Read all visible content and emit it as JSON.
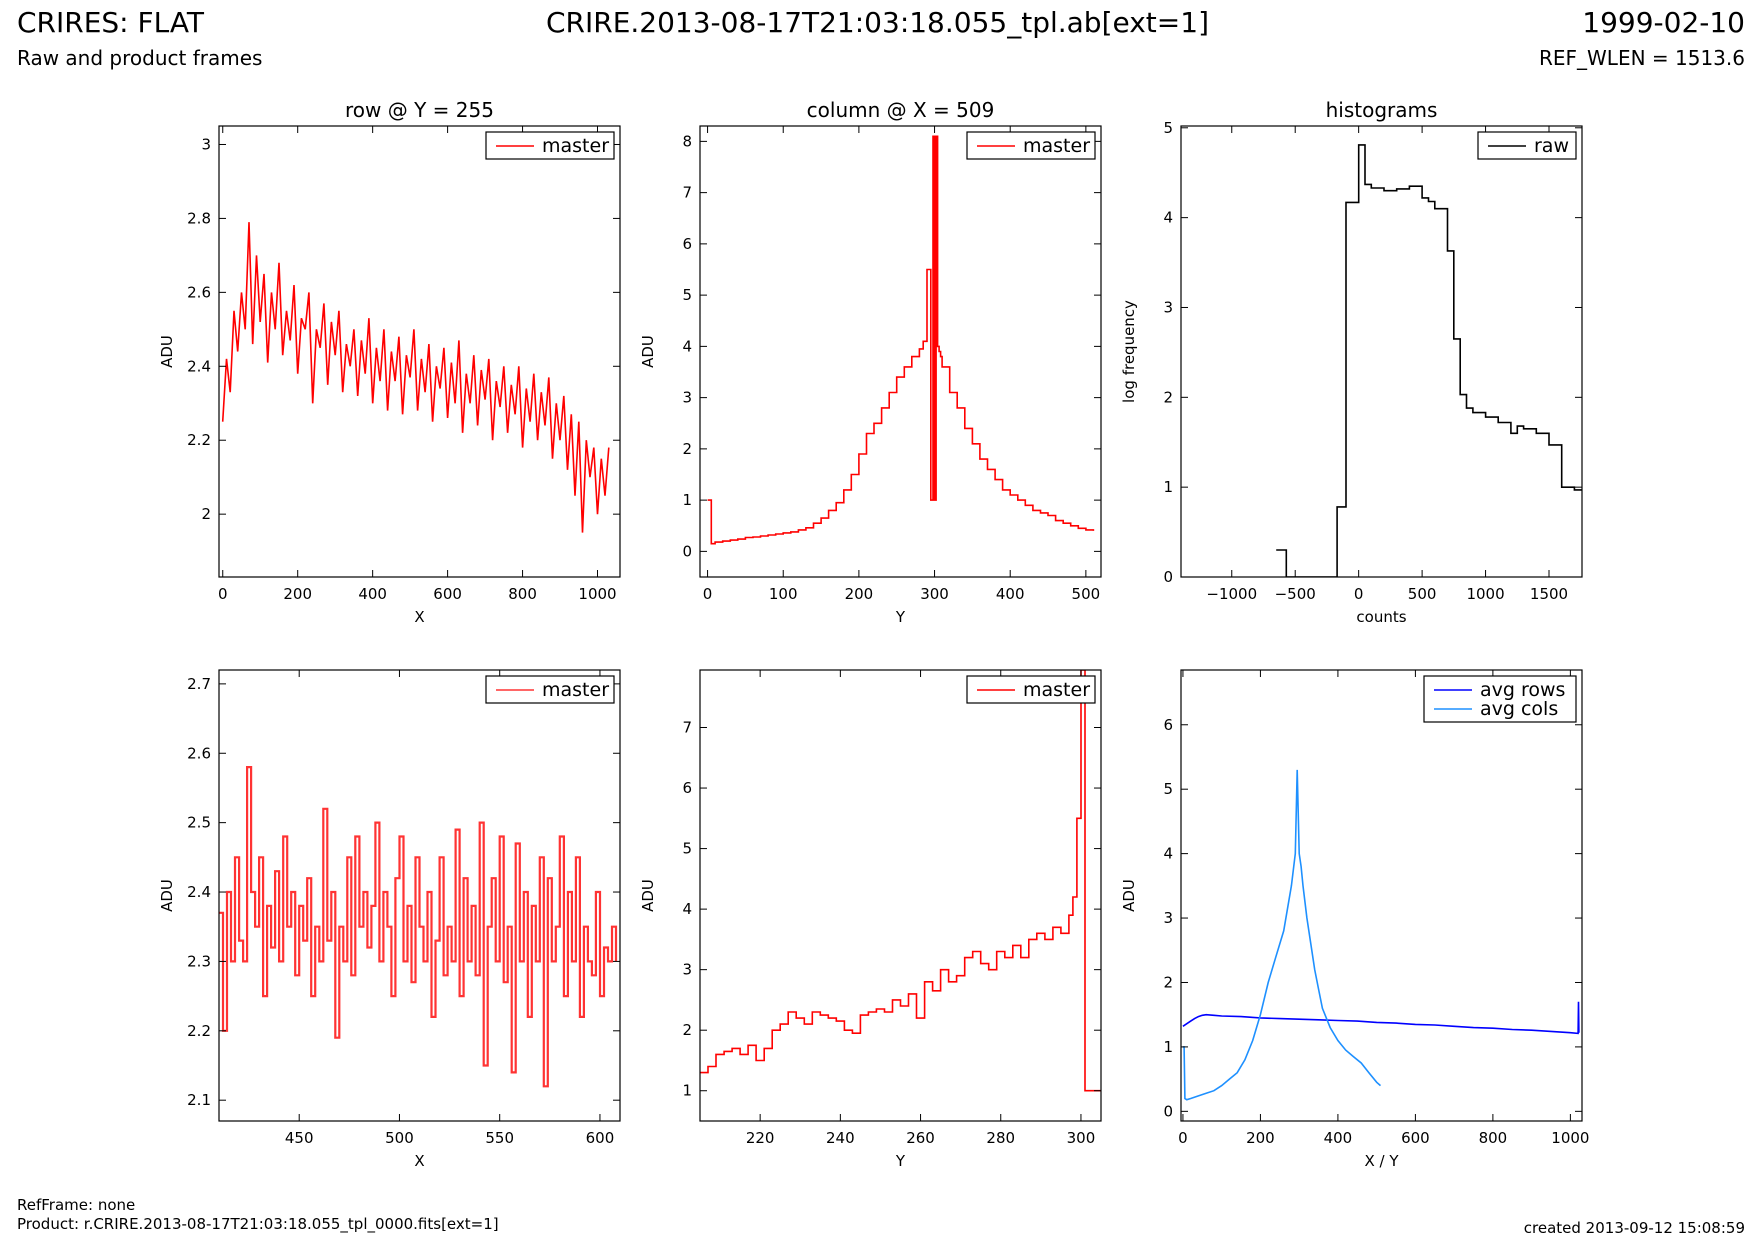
{
  "header": {
    "title": "CRIRES: FLAT",
    "file": "CRIRE.2013-08-17T21:03:18.055_tpl.ab[ext=1]",
    "date": "1999-02-10",
    "subtitle": "Raw and product frames",
    "ref_wlen": "REF_WLEN = 1513.6"
  },
  "footer": {
    "ref_frame": "RefFrame: none",
    "product": "Product: r.CRIRE.2013-08-17T21:03:18.055_tpl_0000.fits[ext=1]",
    "created": "created 2013-09-12 15:08:59"
  },
  "colors": {
    "red": "#ff0000",
    "red_light": "#ff3333",
    "blue": "#0000ff",
    "sky": "#1e90ff",
    "black": "#000000"
  },
  "chart_data": [
    {
      "type": "line",
      "title": "row @ Y = 255",
      "xlabel": "X",
      "ylabel": "ADU",
      "xlim": [
        -10,
        1060
      ],
      "ylim": [
        1.83,
        3.05
      ],
      "xticks": [
        0,
        200,
        400,
        600,
        800,
        1000
      ],
      "yticks": [
        2.0,
        2.2,
        2.4,
        2.6,
        2.8,
        3.0
      ],
      "legend": "top-right",
      "series": [
        {
          "name": "master",
          "color": "#ff0000",
          "step": false,
          "x": [
            0,
            10,
            20,
            30,
            40,
            50,
            60,
            70,
            80,
            90,
            100,
            110,
            120,
            130,
            140,
            150,
            160,
            170,
            180,
            190,
            200,
            210,
            220,
            230,
            240,
            250,
            260,
            270,
            280,
            290,
            300,
            310,
            320,
            330,
            340,
            350,
            360,
            370,
            380,
            390,
            400,
            410,
            420,
            430,
            440,
            450,
            460,
            470,
            480,
            490,
            500,
            510,
            520,
            530,
            540,
            550,
            560,
            570,
            580,
            590,
            600,
            610,
            620,
            630,
            640,
            650,
            660,
            670,
            680,
            690,
            700,
            710,
            720,
            730,
            740,
            750,
            760,
            770,
            780,
            790,
            800,
            810,
            820,
            830,
            840,
            850,
            860,
            870,
            880,
            890,
            900,
            910,
            920,
            930,
            940,
            950,
            960,
            970,
            980,
            990,
            1000,
            1010,
            1020,
            1030
          ],
          "y": [
            2.25,
            2.42,
            2.33,
            2.55,
            2.44,
            2.6,
            2.5,
            2.79,
            2.46,
            2.7,
            2.52,
            2.65,
            2.41,
            2.6,
            2.5,
            2.68,
            2.43,
            2.55,
            2.47,
            2.62,
            2.38,
            2.53,
            2.5,
            2.6,
            2.3,
            2.5,
            2.45,
            2.57,
            2.35,
            2.52,
            2.43,
            2.55,
            2.33,
            2.46,
            2.4,
            2.5,
            2.32,
            2.47,
            2.38,
            2.53,
            2.3,
            2.45,
            2.36,
            2.5,
            2.28,
            2.44,
            2.36,
            2.48,
            2.27,
            2.43,
            2.37,
            2.5,
            2.28,
            2.42,
            2.33,
            2.46,
            2.25,
            2.4,
            2.34,
            2.45,
            2.26,
            2.41,
            2.3,
            2.47,
            2.22,
            2.38,
            2.3,
            2.43,
            2.24,
            2.39,
            2.31,
            2.42,
            2.2,
            2.36,
            2.29,
            2.4,
            2.22,
            2.35,
            2.27,
            2.4,
            2.18,
            2.34,
            2.25,
            2.38,
            2.2,
            2.33,
            2.24,
            2.37,
            2.15,
            2.3,
            2.2,
            2.32,
            2.12,
            2.27,
            2.05,
            2.25,
            1.95,
            2.2,
            2.1,
            2.18,
            2.0,
            2.15,
            2.05,
            2.18
          ]
        }
      ]
    },
    {
      "type": "line",
      "title": "column @ X = 509",
      "xlabel": "Y",
      "ylabel": "ADU",
      "xlim": [
        -10,
        520
      ],
      "ylim": [
        -0.5,
        8.3
      ],
      "xticks": [
        0,
        100,
        200,
        300,
        400,
        500
      ],
      "yticks": [
        0,
        1,
        2,
        3,
        4,
        5,
        6,
        7,
        8
      ],
      "legend": "top-right",
      "series": [
        {
          "name": "master",
          "color": "#ff0000",
          "step": true,
          "x": [
            0,
            3,
            5,
            10,
            20,
            30,
            40,
            50,
            60,
            70,
            80,
            90,
            100,
            110,
            120,
            130,
            140,
            150,
            160,
            170,
            180,
            190,
            200,
            210,
            220,
            230,
            240,
            250,
            260,
            270,
            280,
            285,
            290,
            295,
            298,
            300,
            302,
            304,
            306,
            308,
            310,
            320,
            330,
            340,
            350,
            360,
            370,
            380,
            390,
            400,
            410,
            420,
            430,
            440,
            450,
            460,
            470,
            480,
            490,
            500,
            510
          ],
          "y": [
            1.0,
            1.0,
            0.15,
            0.18,
            0.2,
            0.22,
            0.24,
            0.27,
            0.28,
            0.3,
            0.32,
            0.34,
            0.36,
            0.38,
            0.42,
            0.46,
            0.55,
            0.65,
            0.8,
            0.95,
            1.2,
            1.5,
            1.9,
            2.3,
            2.5,
            2.8,
            3.1,
            3.4,
            3.6,
            3.8,
            3.95,
            4.1,
            5.5,
            1.0,
            8.1,
            1.0,
            8.1,
            4.0,
            3.9,
            3.8,
            3.6,
            3.1,
            2.8,
            2.4,
            2.1,
            1.8,
            1.6,
            1.4,
            1.2,
            1.1,
            1.0,
            0.9,
            0.8,
            0.75,
            0.7,
            0.6,
            0.55,
            0.5,
            0.45,
            0.42,
            0.4
          ]
        }
      ]
    },
    {
      "type": "line",
      "title": "histograms",
      "xlabel": "counts",
      "ylabel": "log frequency",
      "xlim": [
        -1400,
        1760
      ],
      "ylim": [
        0,
        5.02
      ],
      "xticks": [
        -1000,
        -500,
        0,
        500,
        1000,
        1500
      ],
      "yticks": [
        0,
        1,
        2,
        3,
        4,
        5
      ],
      "legend": "top-right",
      "series": [
        {
          "name": "raw",
          "color": "#000000",
          "step": true,
          "x": [
            -650,
            -570,
            -170,
            -100,
            0,
            50,
            100,
            200,
            300,
            400,
            500,
            550,
            600,
            700,
            750,
            800,
            850,
            900,
            1000,
            1100,
            1200,
            1250,
            1300,
            1400,
            1500,
            1550,
            1600,
            1650,
            1700,
            1760
          ],
          "y": [
            0.3,
            0,
            0.78,
            4.17,
            4.81,
            4.37,
            4.33,
            4.3,
            4.32,
            4.35,
            4.22,
            4.18,
            4.1,
            3.63,
            2.65,
            2.03,
            1.88,
            1.83,
            1.78,
            1.72,
            1.6,
            1.68,
            1.65,
            1.6,
            1.47,
            1.47,
            1.0,
            1.0,
            0.97,
            0.97
          ]
        }
      ]
    },
    {
      "type": "line",
      "title": "",
      "xlabel": "X",
      "ylabel": "ADU",
      "xlim": [
        410,
        610
      ],
      "ylim": [
        2.07,
        2.72
      ],
      "xticks": [
        450,
        500,
        550,
        600
      ],
      "yticks": [
        2.1,
        2.2,
        2.3,
        2.4,
        2.5,
        2.6,
        2.7
      ],
      "legend": "top-right",
      "series": [
        {
          "name": "master",
          "color": "#ff3333",
          "step": true,
          "x": [
            410,
            412,
            414,
            416,
            418,
            420,
            422,
            424,
            426,
            428,
            430,
            432,
            434,
            436,
            438,
            440,
            442,
            444,
            446,
            448,
            450,
            452,
            454,
            456,
            458,
            460,
            462,
            464,
            466,
            468,
            470,
            472,
            474,
            476,
            478,
            480,
            482,
            484,
            486,
            488,
            490,
            492,
            494,
            496,
            498,
            500,
            502,
            504,
            506,
            508,
            510,
            512,
            514,
            516,
            518,
            520,
            522,
            524,
            526,
            528,
            530,
            532,
            534,
            536,
            538,
            540,
            542,
            544,
            546,
            548,
            550,
            552,
            554,
            556,
            558,
            560,
            562,
            564,
            566,
            568,
            570,
            572,
            574,
            576,
            578,
            580,
            582,
            584,
            586,
            588,
            590,
            592,
            594,
            596,
            598,
            600,
            602,
            604,
            606,
            608
          ],
          "y": [
            2.37,
            2.2,
            2.4,
            2.3,
            2.45,
            2.33,
            2.3,
            2.58,
            2.4,
            2.35,
            2.45,
            2.25,
            2.38,
            2.32,
            2.43,
            2.3,
            2.48,
            2.35,
            2.4,
            2.28,
            2.38,
            2.33,
            2.42,
            2.25,
            2.35,
            2.3,
            2.52,
            2.33,
            2.4,
            2.19,
            2.35,
            2.3,
            2.45,
            2.28,
            2.48,
            2.35,
            2.4,
            2.32,
            2.38,
            2.5,
            2.3,
            2.4,
            2.35,
            2.25,
            2.42,
            2.48,
            2.3,
            2.38,
            2.27,
            2.45,
            2.35,
            2.3,
            2.4,
            2.22,
            2.33,
            2.45,
            2.28,
            2.35,
            2.3,
            2.49,
            2.25,
            2.42,
            2.3,
            2.38,
            2.28,
            2.5,
            2.15,
            2.35,
            2.42,
            2.3,
            2.48,
            2.27,
            2.35,
            2.14,
            2.47,
            2.3,
            2.4,
            2.22,
            2.38,
            2.3,
            2.45,
            2.12,
            2.42,
            2.3,
            2.35,
            2.48,
            2.25,
            2.4,
            2.3,
            2.45,
            2.22,
            2.35,
            2.3,
            2.28,
            2.4,
            2.25,
            2.32,
            2.3,
            2.35,
            2.3
          ]
        }
      ]
    },
    {
      "type": "line",
      "title": "",
      "xlabel": "Y",
      "ylabel": "ADU",
      "xlim": [
        205,
        305
      ],
      "ylim": [
        0.5,
        7.95
      ],
      "xticks": [
        220,
        240,
        260,
        280,
        300
      ],
      "yticks": [
        1,
        2,
        3,
        4,
        5,
        6,
        7
      ],
      "legend": "top-right",
      "series": [
        {
          "name": "master",
          "color": "#ff0000",
          "step": true,
          "x": [
            205,
            207,
            209,
            211,
            213,
            215,
            217,
            219,
            221,
            223,
            225,
            227,
            229,
            231,
            233,
            235,
            237,
            239,
            241,
            243,
            245,
            247,
            249,
            251,
            253,
            255,
            257,
            259,
            261,
            263,
            265,
            267,
            269,
            271,
            273,
            275,
            277,
            279,
            281,
            283,
            285,
            287,
            289,
            291,
            293,
            295,
            297,
            298,
            299,
            300,
            301,
            302,
            305
          ],
          "y": [
            1.3,
            1.4,
            1.6,
            1.65,
            1.7,
            1.6,
            1.75,
            1.5,
            1.7,
            2.0,
            2.1,
            2.3,
            2.2,
            2.1,
            2.3,
            2.25,
            2.2,
            2.15,
            2.0,
            1.95,
            2.25,
            2.3,
            2.35,
            2.3,
            2.5,
            2.4,
            2.6,
            2.2,
            2.8,
            2.65,
            3.0,
            2.8,
            2.9,
            3.2,
            3.3,
            3.1,
            3.0,
            3.3,
            3.2,
            3.4,
            3.2,
            3.5,
            3.6,
            3.5,
            3.7,
            3.6,
            3.9,
            4.2,
            5.5,
            7.95,
            1.0,
            1.0,
            1.0
          ]
        }
      ]
    },
    {
      "type": "line",
      "title": "",
      "xlabel": "X / Y",
      "ylabel": "ADU",
      "xlim": [
        -5,
        1030
      ],
      "ylim": [
        -0.15,
        6.85
      ],
      "xticks": [
        0,
        200,
        400,
        600,
        800,
        1000
      ],
      "yticks": [
        0,
        1,
        2,
        3,
        4,
        5,
        6
      ],
      "legend": "top-right",
      "series": [
        {
          "name": "avg rows",
          "color": "#0000ff",
          "step": false,
          "x": [
            0,
            10,
            20,
            30,
            40,
            50,
            60,
            80,
            100,
            150,
            200,
            250,
            300,
            350,
            400,
            450,
            500,
            550,
            600,
            650,
            700,
            750,
            800,
            850,
            900,
            950,
            1000,
            1020,
            1021,
            1022
          ],
          "y": [
            1.32,
            1.36,
            1.4,
            1.44,
            1.47,
            1.49,
            1.5,
            1.49,
            1.48,
            1.47,
            1.45,
            1.44,
            1.43,
            1.42,
            1.41,
            1.4,
            1.38,
            1.37,
            1.35,
            1.34,
            1.32,
            1.3,
            1.29,
            1.27,
            1.26,
            1.24,
            1.22,
            1.21,
            1.7,
            1.22
          ]
        },
        {
          "name": "avg cols",
          "color": "#1e90ff",
          "step": false,
          "x": [
            0,
            3,
            5,
            10,
            20,
            40,
            60,
            80,
            100,
            120,
            140,
            160,
            180,
            200,
            220,
            240,
            260,
            280,
            290,
            295,
            300,
            305,
            310,
            320,
            330,
            340,
            350,
            360,
            380,
            400,
            420,
            440,
            460,
            480,
            500,
            510
          ],
          "y": [
            1.0,
            1.0,
            0.2,
            0.18,
            0.2,
            0.24,
            0.28,
            0.32,
            0.4,
            0.5,
            0.6,
            0.8,
            1.1,
            1.5,
            2.0,
            2.4,
            2.8,
            3.5,
            4.0,
            5.3,
            4.0,
            3.8,
            3.5,
            3.0,
            2.6,
            2.2,
            1.9,
            1.6,
            1.3,
            1.1,
            0.95,
            0.85,
            0.75,
            0.6,
            0.45,
            0.4
          ]
        }
      ]
    }
  ]
}
